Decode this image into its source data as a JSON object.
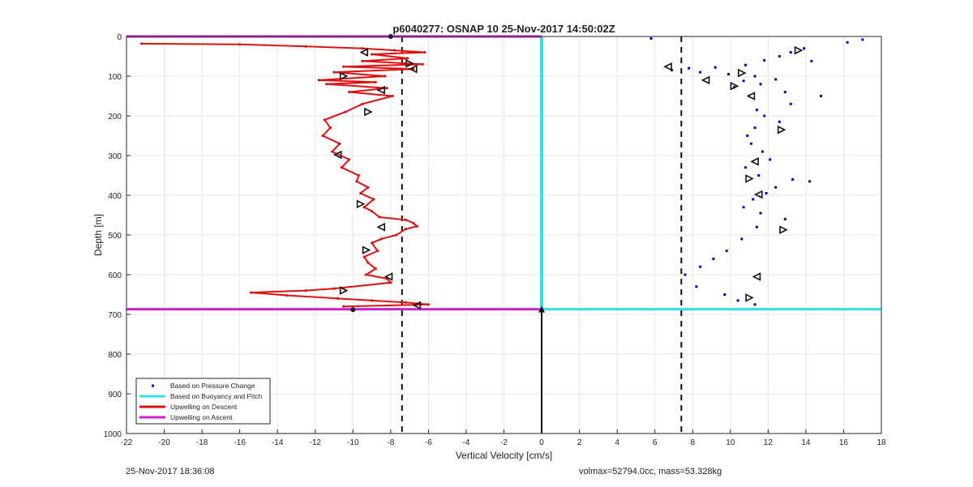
{
  "chart_data": {
    "type": "scatter",
    "title": "p6040277: OSNAP 10 25-Nov-2017 14:50:02Z",
    "xlabel": "Vertical Velocity [cm/s]",
    "ylabel": "Depth [m]",
    "xlim": [
      -22,
      18
    ],
    "ylim": [
      1000,
      0
    ],
    "y_reversed": true,
    "grid": true,
    "legend_position": "bottom-left",
    "xticks": [
      -22,
      -20,
      -18,
      -16,
      -14,
      -12,
      -10,
      -8,
      -6,
      -4,
      -2,
      0,
      2,
      4,
      6,
      8,
      10,
      12,
      14,
      16,
      18
    ],
    "yticks": [
      0,
      100,
      200,
      300,
      400,
      500,
      600,
      700,
      800,
      900,
      1000
    ],
    "legend": [
      {
        "label": "Based on Pressure Change",
        "color": "#0000cc",
        "style": "dot"
      },
      {
        "label": "Based on Buoyancy and Pitch",
        "color": "#33e0e0",
        "style": "line"
      },
      {
        "label": "Upwelling on Descent",
        "color": "#dd1111",
        "style": "line"
      },
      {
        "label": "Upwelling on Ascent",
        "color": "#cc22cc",
        "style": "line"
      }
    ],
    "reference_lines": {
      "dashed_x": [
        -7.4,
        7.4
      ],
      "dive_depth": 687
    },
    "series": [
      {
        "name": "Upwelling on Descent",
        "color": "#dd1111",
        "x": [
          -21.2,
          -16.0,
          -12.5,
          -9.5,
          -7.8,
          -6.2,
          -9.0,
          -7.1,
          -9.5,
          -6.3,
          -10.5,
          -6.8,
          -11.0,
          -8.3,
          -11.8,
          -8.8,
          -11.4,
          -8.2,
          -10.2,
          -7.9,
          -9.5,
          -10.4,
          -11.5,
          -11.2,
          -11.6,
          -10.7,
          -11.1,
          -10.2,
          -10.6,
          -9.7,
          -9.8,
          -9.2,
          -9.6,
          -8.9,
          -9.4,
          -9.0,
          -8.6,
          -7.2,
          -6.8,
          -6.6,
          -7.2,
          -7.7,
          -8.5,
          -9.0,
          -8.7,
          -9.4,
          -9.2,
          -8.8,
          -9.3,
          -8.2,
          -8.0,
          -11.0,
          -12.5,
          -15.4,
          -13.5,
          -10.8,
          -9.0,
          -7.2,
          -6.0,
          -10.5
        ],
        "y": [
          18,
          20,
          25,
          30,
          35,
          40,
          45,
          55,
          62,
          70,
          76,
          82,
          90,
          100,
          110,
          115,
          120,
          130,
          140,
          150,
          170,
          190,
          210,
          230,
          250,
          270,
          290,
          310,
          330,
          350,
          365,
          380,
          395,
          410,
          430,
          440,
          455,
          462,
          470,
          478,
          485,
          500,
          510,
          520,
          540,
          555,
          570,
          585,
          600,
          610,
          620,
          635,
          640,
          645,
          652,
          660,
          665,
          670,
          675,
          680
        ]
      },
      {
        "name": "Based on Pressure Change",
        "color": "#0000cc",
        "x": [
          17.0,
          16.2,
          13.9,
          13.2,
          12.6,
          11.8,
          14.3,
          10.8,
          9.2,
          7.8,
          6.9,
          8.4,
          9.9,
          11.3,
          12.4,
          10.7,
          11.6,
          10.2,
          12.9,
          14.8,
          13.2,
          11.4,
          11.8,
          12.6,
          11.3,
          10.9,
          11.1,
          11.7,
          12.1,
          10.8,
          11.5,
          13.3,
          14.2,
          12.4,
          11.9,
          11.2,
          10.7,
          11.6,
          12.9,
          11.4,
          10.6,
          9.8,
          9.1,
          8.4,
          7.6,
          8.2,
          9.7,
          10.4,
          11.3,
          5.8
        ],
        "y": [
          8,
          15,
          30,
          40,
          50,
          60,
          62,
          72,
          78,
          80,
          85,
          90,
          95,
          100,
          108,
          112,
          120,
          128,
          140,
          150,
          170,
          185,
          200,
          215,
          230,
          250,
          270,
          290,
          310,
          330,
          350,
          360,
          365,
          380,
          395,
          410,
          430,
          445,
          460,
          480,
          510,
          540,
          560,
          580,
          600,
          630,
          650,
          665,
          675,
          5
        ]
      }
    ],
    "ascent_segments": {
      "top_y": 0,
      "bottom_y": 687,
      "top_x_range": [
        -22,
        0
      ],
      "bottom_x_range": [
        -22,
        0
      ]
    },
    "buoyancy_pitch": {
      "x": 0,
      "y_range": [
        0,
        687
      ],
      "bottom_line_x_range": [
        0,
        18
      ]
    },
    "markers": {
      "descent_triangles": [
        [
          -9.4,
          40
        ],
        [
          -7.0,
          68
        ],
        [
          -6.8,
          82
        ],
        [
          -10.5,
          100
        ],
        [
          -8.5,
          135
        ],
        [
          -9.2,
          190
        ],
        [
          -10.8,
          298
        ],
        [
          -9.6,
          422
        ],
        [
          -8.5,
          480
        ],
        [
          -9.3,
          538
        ],
        [
          -8.1,
          605
        ],
        [
          -10.5,
          640
        ],
        [
          -6.6,
          677
        ]
      ],
      "pressure_triangles": [
        [
          13.6,
          35
        ],
        [
          6.7,
          76
        ],
        [
          10.6,
          92
        ],
        [
          8.7,
          110
        ],
        [
          10.2,
          125
        ],
        [
          11.1,
          150
        ],
        [
          12.7,
          235
        ],
        [
          11.3,
          315
        ],
        [
          11.0,
          358
        ],
        [
          11.5,
          398
        ],
        [
          12.8,
          487
        ],
        [
          11.4,
          605
        ],
        [
          11.0,
          658
        ]
      ]
    }
  },
  "footer": {
    "left": "25-Nov-2017 18:36:08",
    "right": "volmax=52794.0cc, mass=53.328kg"
  }
}
